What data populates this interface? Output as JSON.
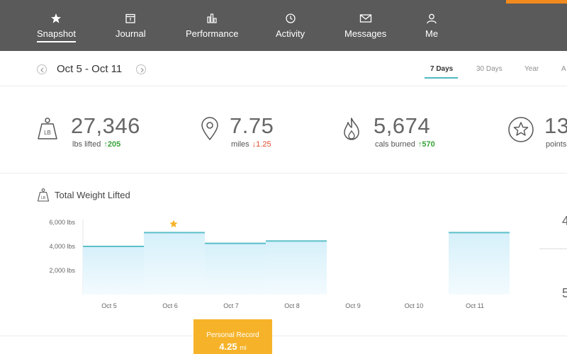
{
  "nav": {
    "items": [
      {
        "label": "Snapshot",
        "icon": "star-icon",
        "active": true
      },
      {
        "label": "Journal",
        "icon": "calendar-icon",
        "active": false
      },
      {
        "label": "Performance",
        "icon": "bar-chart-icon",
        "active": false
      },
      {
        "label": "Activity",
        "icon": "clock-icon",
        "active": false
      },
      {
        "label": "Messages",
        "icon": "envelope-icon",
        "active": false
      },
      {
        "label": "Me",
        "icon": "person-icon",
        "active": false
      }
    ],
    "background": "#5a5a5a",
    "accent": "#f28a1e"
  },
  "datebar": {
    "range": "Oct 5 - Oct 11",
    "tabs": [
      "7 Days",
      "30 Days",
      "Year",
      "A"
    ],
    "active_tab": "7 Days",
    "underline_color": "#4fb7c3"
  },
  "stats": [
    {
      "icon": "weight-icon",
      "value": "27,346",
      "label": "lbs lifted",
      "delta": "205",
      "direction": "up"
    },
    {
      "icon": "location-pin-icon",
      "value": "7.75",
      "label": "miles",
      "delta": "1.25",
      "direction": "down"
    },
    {
      "icon": "flame-icon",
      "value": "5,674",
      "label": "cals burned",
      "delta": "570",
      "direction": "up"
    },
    {
      "icon": "star-badge-icon",
      "value": "13",
      "label": "points"
    }
  ],
  "chart_section": {
    "title": "Total Weight Lifted",
    "icon": "weight-icon"
  },
  "chart_data": {
    "type": "area",
    "title": "Total Weight Lifted",
    "categories": [
      "Oct 5",
      "Oct 6",
      "Oct 7",
      "Oct 8",
      "Oct 9",
      "Oct 10",
      "Oct 11"
    ],
    "values": [
      4000,
      5150,
      4250,
      4450,
      0,
      0,
      5150
    ],
    "yticks": [
      "2,000 lbs",
      "4,000 lbs",
      "6,000 lbs"
    ],
    "ytick_values": [
      2000,
      4000,
      6000
    ],
    "ylim": [
      0,
      6000
    ],
    "highlight_index": 1,
    "line_color": "#5bc0c9",
    "fill_color": "#dff4fb",
    "star_color": "#f6b32a"
  },
  "right_edge": {
    "top": "4",
    "bottom": "5"
  },
  "personal_record": {
    "title": "Personal Record",
    "value": "4.25",
    "unit": "mi",
    "color": "#f6b32a"
  }
}
